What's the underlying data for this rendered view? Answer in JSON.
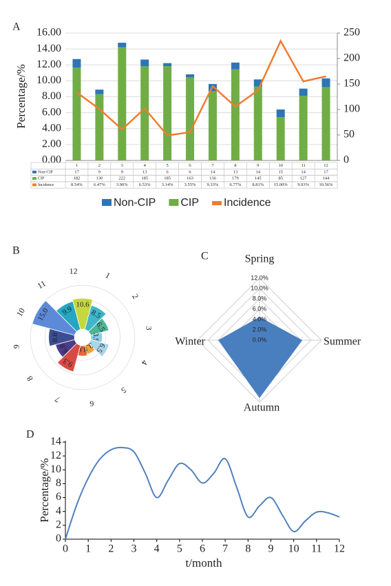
{
  "chart_data": [
    {
      "type": "bar",
      "label": "A",
      "ylabel": "Percentage/%",
      "categories": [
        "1",
        "2",
        "3",
        "4",
        "5",
        "6",
        "7",
        "8",
        "9",
        "10",
        "11",
        "12"
      ],
      "series": [
        {
          "name": "Non-CIP",
          "color": "#2e75b6",
          "axis": "y2",
          "values": [
            17,
            9,
            9,
            13,
            6,
            6,
            14,
            13,
            14,
            15,
            14,
            17
          ]
        },
        {
          "name": "CIP",
          "color": "#70ad47",
          "axis": "y2",
          "values": [
            182,
            130,
            222,
            185,
            185,
            163,
            136,
            179,
            145,
            85,
            127,
            144
          ]
        },
        {
          "name": "Incidence",
          "color": "#ed7d31",
          "type": "line",
          "values": [
            8.54,
            6.47,
            3.9,
            6.53,
            3.14,
            3.55,
            9.33,
            6.77,
            8.81,
            15,
            9.93,
            10.56
          ],
          "value_labels": [
            "8.54%",
            "6.47%",
            "3.90%",
            "6.53%",
            "3.14%",
            "3.55%",
            "9.33%",
            "6.77%",
            "8.81%",
            "15.00%",
            "9.93%",
            "10.56%"
          ]
        }
      ],
      "ylim": [
        0,
        16
      ],
      "yticks": [
        {
          "value": 0,
          "label": "0.00"
        },
        {
          "value": 2,
          "label": "2.00"
        },
        {
          "value": 4,
          "label": "4.00"
        },
        {
          "value": 6,
          "label": "6.00"
        },
        {
          "value": 8,
          "label": "8.00"
        },
        {
          "value": 10,
          "label": "10.00"
        },
        {
          "value": 12,
          "label": "12.00"
        },
        {
          "value": 14,
          "label": "14.00"
        },
        {
          "value": 16,
          "label": "16.00"
        }
      ],
      "y2lim": [
        0,
        250
      ],
      "y2ticks": [
        0,
        50,
        100,
        150,
        200,
        250
      ],
      "grid": true,
      "legend": "bottom"
    },
    {
      "type": "rose",
      "label": "B",
      "categories": [
        "1",
        "2",
        "3",
        "4",
        "5",
        "6",
        "7",
        "8",
        "9",
        "10",
        "11",
        "12"
      ],
      "values": [
        8.54,
        6.47,
        3.9,
        6.53,
        3.14,
        3.55,
        9.33,
        6.77,
        8.81,
        15,
        9.93,
        10.56
      ],
      "value_labels": [
        "8.5",
        "6.5",
        "3.9",
        "6.5",
        "3.1",
        "3.6",
        "9.3",
        "6.8",
        "8.8",
        "15.0",
        "9.9",
        "10.6"
      ],
      "colors": [
        "#3fb6c9",
        "#4db596",
        "#8dcce6",
        "#a9d6e8",
        "#f0a33a",
        "#e8673c",
        "#d84a45",
        "#4e3b8a",
        "#3c4d92",
        "#5c8ad8",
        "#26a6c2",
        "#c5d83f"
      ],
      "rlim": [
        0,
        16
      ],
      "rticks": [
        5,
        10,
        15
      ]
    },
    {
      "type": "radar",
      "label": "C",
      "categories": [
        "Spring",
        "Summer",
        "Autumn",
        "Winter"
      ],
      "values": [
        4.5,
        8.3,
        11.2,
        8.0
      ],
      "color": "#4a7fbf",
      "rlim": [
        0,
        12
      ],
      "rticks": [
        {
          "value": 0,
          "label": "0.0%"
        },
        {
          "value": 2,
          "label": "2.0%"
        },
        {
          "value": 4,
          "label": "4.0%"
        },
        {
          "value": 6,
          "label": "6.0%"
        },
        {
          "value": 8,
          "label": "8.0%"
        },
        {
          "value": 10,
          "label": "10.0%"
        },
        {
          "value": 12,
          "label": "12.0%"
        }
      ]
    },
    {
      "type": "line",
      "label": "D",
      "ylabel": "Percentage/%",
      "xlabel": "t/month",
      "color": "#4f81bd",
      "x": [
        0,
        0.5,
        1,
        1.5,
        2,
        2.5,
        3,
        3.5,
        4,
        4.5,
        5,
        5.5,
        6,
        6.5,
        7,
        7.5,
        8,
        8.5,
        9,
        9.5,
        10,
        10.5,
        11,
        11.5,
        12
      ],
      "values": [
        0,
        5,
        8.8,
        11.5,
        12.9,
        13.2,
        12.6,
        9.5,
        6,
        8.5,
        10.9,
        10,
        8.1,
        9.5,
        11.6,
        7.5,
        3.2,
        4.8,
        6,
        3.5,
        1.1,
        2.6,
        3.9,
        3.8,
        3.2
      ],
      "xlim": [
        0,
        12
      ],
      "xticks": [
        0,
        1,
        2,
        3,
        4,
        5,
        6,
        7,
        8,
        9,
        10,
        11,
        12
      ],
      "ylim": [
        0,
        14
      ],
      "yticks": [
        0,
        2,
        4,
        6,
        8,
        10,
        12,
        14
      ]
    }
  ]
}
